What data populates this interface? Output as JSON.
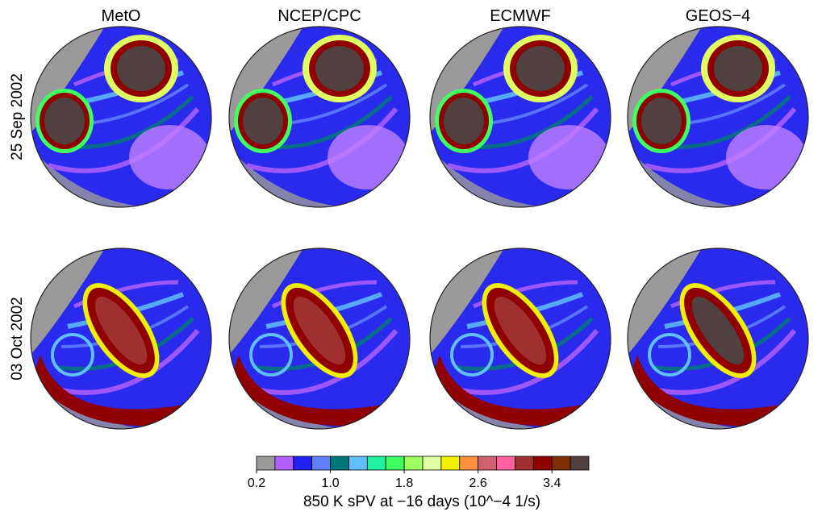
{
  "columns": [
    "MetO",
    "NCEP/CPC",
    "ECMWF",
    "GEOS−4"
  ],
  "rows": [
    "25 Sep 2002",
    "03 Oct 2002"
  ],
  "colorbar": {
    "label": "850 K sPV at −16 days (10^−4 1/s)",
    "clim": [
      0.2,
      3.8
    ],
    "ticks": [
      0.2,
      {
        "value": 1,
        "label": "1.0"
      },
      1.8,
      2.6,
      3.4
    ],
    "colors": [
      "#999999",
      "#b060ff",
      "#2020f0",
      "#6080ff",
      "#007878",
      "#60c0ff",
      "#20f0a0",
      "#40ff60",
      "#a0ff60",
      "#e0ffa0",
      "#f0f000",
      "#ff9040",
      "#d06070",
      "#ff60a0",
      "#a03030",
      "#900000",
      "#803000",
      "#504040"
    ]
  }
}
